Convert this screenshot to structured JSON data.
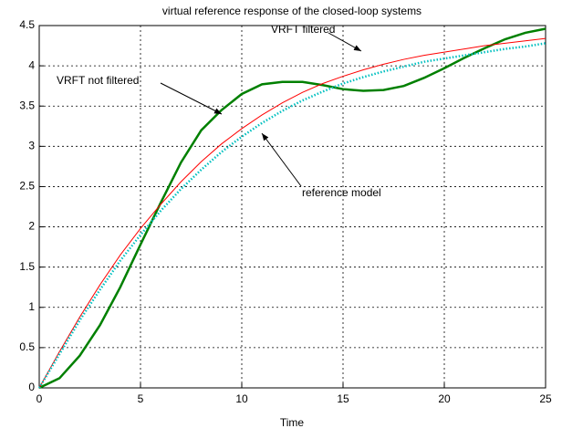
{
  "chart_data": {
    "type": "line",
    "title": "virtual reference response of the closed-loop systems",
    "x_label": "Time",
    "x": [
      0,
      1,
      2,
      3,
      4,
      5,
      6,
      7,
      8,
      9,
      10,
      11,
      12,
      13,
      14,
      15,
      16,
      17,
      18,
      19,
      20,
      21,
      22,
      23,
      24,
      25
    ],
    "series": [
      {
        "name": "VRFT not filtered",
        "color": "#008000",
        "style": "solid",
        "width": 2.5,
        "values": [
          0,
          0.12,
          0.4,
          0.78,
          1.25,
          1.78,
          2.3,
          2.8,
          3.2,
          3.45,
          3.65,
          3.77,
          3.8,
          3.8,
          3.76,
          3.71,
          3.69,
          3.7,
          3.75,
          3.85,
          3.97,
          4.1,
          4.22,
          4.33,
          4.41,
          4.46
        ]
      },
      {
        "name": "VRFT filtered",
        "color": "#ff0000",
        "style": "solid",
        "width": 1,
        "values": [
          0,
          0.45,
          0.88,
          1.28,
          1.65,
          1.98,
          2.28,
          2.56,
          2.81,
          3.03,
          3.22,
          3.39,
          3.54,
          3.67,
          3.78,
          3.87,
          3.95,
          4.02,
          4.08,
          4.13,
          4.17,
          4.21,
          4.25,
          4.28,
          4.31,
          4.34
        ]
      },
      {
        "name": "reference model",
        "color": "#00c0c0",
        "style": "dotted",
        "width": 2.5,
        "values": [
          0,
          0.42,
          0.84,
          1.22,
          1.58,
          1.9,
          2.2,
          2.47,
          2.71,
          2.93,
          3.12,
          3.29,
          3.44,
          3.57,
          3.68,
          3.78,
          3.86,
          3.93,
          3.99,
          4.05,
          4.09,
          4.13,
          4.17,
          4.21,
          4.24,
          4.28
        ]
      }
    ],
    "xlim": [
      0,
      25
    ],
    "xticks": [
      0,
      5,
      10,
      15,
      20,
      25
    ],
    "ylim": [
      0,
      4.5
    ],
    "yticks": [
      0,
      0.5,
      1,
      1.5,
      2,
      2.5,
      3,
      3.5,
      4,
      4.5
    ],
    "grid": true
  }
}
